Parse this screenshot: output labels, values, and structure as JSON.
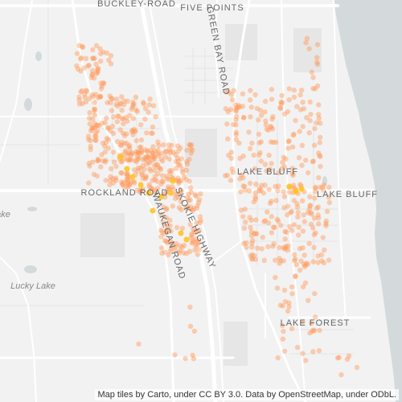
{
  "map": {
    "attribution": "Map tiles by Carto, under CC BY 3.0. Data by OpenStreetMap, under ODbL.",
    "colors": {
      "land": "#f2f2f2",
      "water": "#d4dadc",
      "road": "#ffffff",
      "park": "#e6e6e6",
      "dot": "#ff9a5c",
      "dot_hot": "#ffc21a"
    },
    "labels": {
      "buckley_road": "BUCKLEY-ROAD",
      "five_points": "FIVE POINTS",
      "green_bay_road": "GREEN BAY ROAD",
      "lake_bluff_city": "LAKE BLUFF",
      "lake_bluff_road": "LAKE BLUFF",
      "rockland_road": "ROCKLAND ROAD",
      "skokie_highway": "SKOKIE HIGHWAY",
      "waukegan_road": "WAUKEGAN ROAD",
      "lake_forest": "LAKE FOREST",
      "lucky_lake": "Lucky Lake",
      "lake_edge": "ake"
    }
  }
}
